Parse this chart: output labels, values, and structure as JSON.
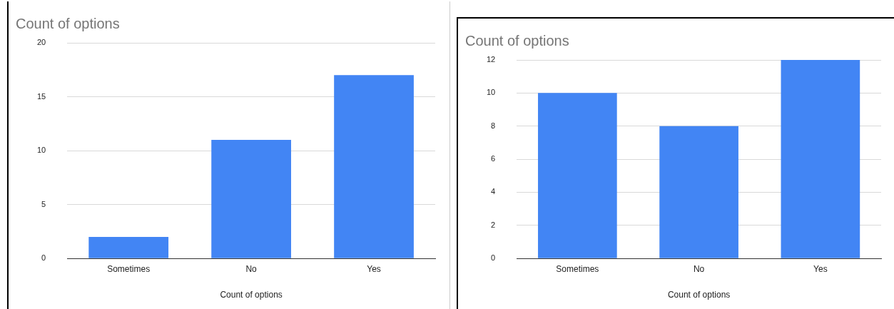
{
  "chart_data": [
    {
      "type": "bar",
      "title": "Count of options",
      "xlabel": "Count of options",
      "categories": [
        "Sometimes",
        "No",
        "Yes"
      ],
      "values": [
        2,
        11,
        17
      ],
      "color": "#4285f4",
      "ylim": [
        0,
        20
      ],
      "yticks": [
        0,
        5,
        10,
        15,
        20
      ],
      "grid": "y",
      "legend": false
    },
    {
      "type": "bar",
      "title": "Count of options",
      "xlabel": "Count of options",
      "categories": [
        "Sometimes",
        "No",
        "Yes"
      ],
      "values": [
        10,
        8,
        12
      ],
      "color": "#4285f4",
      "ylim": [
        0,
        12
      ],
      "yticks": [
        0,
        2,
        4,
        6,
        8,
        10,
        12
      ],
      "grid": "y",
      "legend": false
    }
  ]
}
